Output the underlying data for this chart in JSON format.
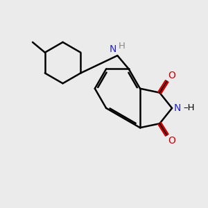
{
  "bg_color": "#ebebeb",
  "bond_color": "#000000",
  "N_color": "#2222cc",
  "O_color": "#cc0000",
  "line_width": 1.8,
  "font_size_atom": 10,
  "fig_bg": "#ebebeb",
  "xlim": [
    0,
    10
  ],
  "ylim": [
    0,
    10
  ]
}
